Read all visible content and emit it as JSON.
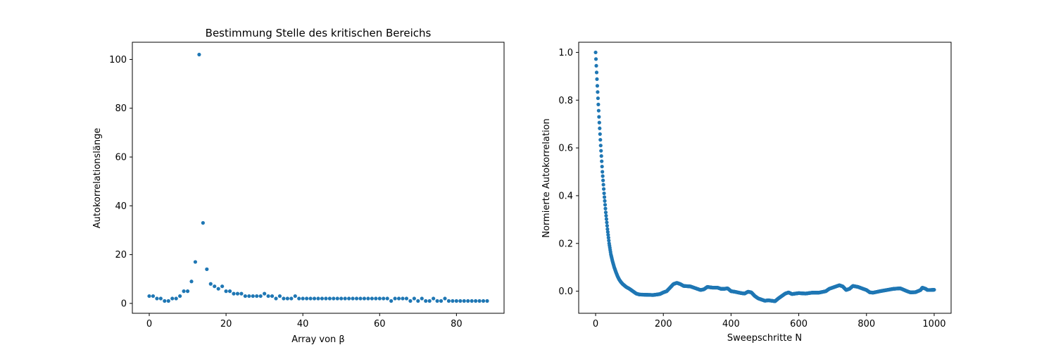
{
  "colors": {
    "marker": "#1f77b4",
    "axis": "#000000",
    "background": "#ffffff"
  },
  "chart_data": [
    {
      "type": "scatter",
      "title": "Bestimmung Stelle des kritischen Bereichs",
      "xlabel": "Array von β",
      "ylabel": "Autokorrelationslänge",
      "xlim": [
        -4.4,
        92.4
      ],
      "ylim": [
        -4.05,
        107.05
      ],
      "xticks": [
        0,
        20,
        40,
        60,
        80
      ],
      "yticks": [
        0,
        20,
        40,
        60,
        80,
        100
      ],
      "x": [
        0,
        1,
        2,
        3,
        4,
        5,
        6,
        7,
        8,
        9,
        10,
        11,
        12,
        13,
        14,
        15,
        16,
        17,
        18,
        19,
        20,
        21,
        22,
        23,
        24,
        25,
        26,
        27,
        28,
        29,
        30,
        31,
        32,
        33,
        34,
        35,
        36,
        37,
        38,
        39,
        40,
        41,
        42,
        43,
        44,
        45,
        46,
        47,
        48,
        49,
        50,
        51,
        52,
        53,
        54,
        55,
        56,
        57,
        58,
        59,
        60,
        61,
        62,
        63,
        64,
        65,
        66,
        67,
        68,
        69,
        70,
        71,
        72,
        73,
        74,
        75,
        76,
        77,
        78,
        79,
        80,
        81,
        82,
        83,
        84,
        85,
        86,
        87,
        88
      ],
      "y": [
        3,
        3,
        2,
        2,
        1,
        1,
        2,
        2,
        3,
        5,
        5,
        9,
        17,
        102,
        33,
        14,
        8,
        7,
        6,
        7,
        5,
        5,
        4,
        4,
        4,
        3,
        3,
        3,
        3,
        3,
        4,
        3,
        3,
        2,
        3,
        2,
        2,
        2,
        3,
        2,
        2,
        2,
        2,
        2,
        2,
        2,
        2,
        2,
        2,
        2,
        2,
        2,
        2,
        2,
        2,
        2,
        2,
        2,
        2,
        2,
        2,
        2,
        2,
        1,
        2,
        2,
        2,
        2,
        1,
        2,
        1,
        2,
        1,
        1,
        2,
        1,
        1,
        2,
        1,
        1,
        1,
        1,
        1,
        1,
        1,
        1,
        1,
        1,
        1
      ]
    },
    {
      "type": "scatter",
      "title": "",
      "xlabel": "Sweepschritte N",
      "ylabel": "Normierte Autokorrelation",
      "xlim": [
        -50,
        1050
      ],
      "ylim": [
        -0.0925,
        1.0425
      ],
      "xticks": [
        0,
        200,
        400,
        600,
        800,
        1000
      ],
      "yticks": [
        0.0,
        0.2,
        0.4,
        0.6,
        0.8,
        1.0
      ],
      "x_range": [
        0,
        1000
      ],
      "curve": [
        [
          0,
          1.0
        ],
        [
          5,
          0.86
        ],
        [
          10,
          0.73
        ],
        [
          15,
          0.61
        ],
        [
          20,
          0.5
        ],
        [
          25,
          0.41
        ],
        [
          30,
          0.33
        ],
        [
          35,
          0.26
        ],
        [
          40,
          0.2
        ],
        [
          45,
          0.155
        ],
        [
          50,
          0.125
        ],
        [
          55,
          0.1
        ],
        [
          60,
          0.08
        ],
        [
          65,
          0.062
        ],
        [
          70,
          0.048
        ],
        [
          75,
          0.038
        ],
        [
          80,
          0.03
        ],
        [
          85,
          0.024
        ],
        [
          90,
          0.018
        ],
        [
          100,
          0.01
        ],
        [
          110,
          0.0
        ],
        [
          120,
          -0.01
        ],
        [
          130,
          -0.014
        ],
        [
          150,
          -0.015
        ],
        [
          170,
          -0.016
        ],
        [
          190,
          -0.012
        ],
        [
          200,
          -0.005
        ],
        [
          210,
          0.0
        ],
        [
          220,
          0.015
        ],
        [
          230,
          0.03
        ],
        [
          240,
          0.035
        ],
        [
          250,
          0.03
        ],
        [
          260,
          0.022
        ],
        [
          280,
          0.02
        ],
        [
          300,
          0.01
        ],
        [
          310,
          0.005
        ],
        [
          320,
          0.008
        ],
        [
          330,
          0.018
        ],
        [
          345,
          0.015
        ],
        [
          360,
          0.015
        ],
        [
          370,
          0.01
        ],
        [
          380,
          0.01
        ],
        [
          390,
          0.012
        ],
        [
          400,
          0.0
        ],
        [
          410,
          -0.002
        ],
        [
          420,
          -0.005
        ],
        [
          430,
          -0.008
        ],
        [
          440,
          -0.01
        ],
        [
          450,
          -0.002
        ],
        [
          460,
          -0.005
        ],
        [
          470,
          -0.02
        ],
        [
          480,
          -0.03
        ],
        [
          490,
          -0.035
        ],
        [
          500,
          -0.04
        ],
        [
          510,
          -0.038
        ],
        [
          520,
          -0.04
        ],
        [
          530,
          -0.042
        ],
        [
          540,
          -0.03
        ],
        [
          550,
          -0.02
        ],
        [
          560,
          -0.01
        ],
        [
          570,
          -0.005
        ],
        [
          580,
          -0.012
        ],
        [
          590,
          -0.01
        ],
        [
          600,
          -0.008
        ],
        [
          620,
          -0.01
        ],
        [
          640,
          -0.006
        ],
        [
          660,
          -0.006
        ],
        [
          680,
          0.0
        ],
        [
          690,
          0.01
        ],
        [
          700,
          0.015
        ],
        [
          720,
          0.025
        ],
        [
          730,
          0.02
        ],
        [
          740,
          0.005
        ],
        [
          750,
          0.01
        ],
        [
          760,
          0.022
        ],
        [
          775,
          0.018
        ],
        [
          790,
          0.01
        ],
        [
          800,
          0.005
        ],
        [
          810,
          -0.005
        ],
        [
          820,
          -0.006
        ],
        [
          840,
          0.0
        ],
        [
          860,
          0.005
        ],
        [
          880,
          0.01
        ],
        [
          900,
          0.012
        ],
        [
          920,
          0.0
        ],
        [
          930,
          -0.005
        ],
        [
          945,
          -0.004
        ],
        [
          960,
          0.005
        ],
        [
          965,
          0.015
        ],
        [
          975,
          0.01
        ],
        [
          980,
          0.005
        ],
        [
          990,
          0.005
        ],
        [
          1000,
          0.006
        ]
      ]
    }
  ]
}
